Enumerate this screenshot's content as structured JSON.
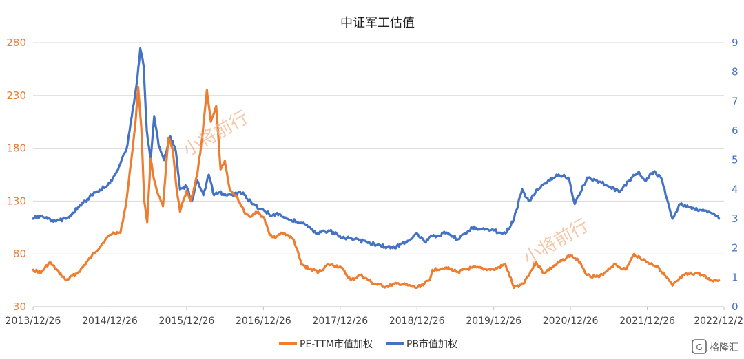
{
  "chart_data": {
    "type": "line",
    "title": "中证军工估值",
    "x_ticks": [
      "2013/12/26",
      "2014/12/26",
      "2015/12/26",
      "2016/12/26",
      "2017/12/26",
      "2018/12/26",
      "2019/12/26",
      "2020/12/26",
      "2021/12/26",
      "2022/12/2"
    ],
    "y_left": {
      "min": 30,
      "max": 280,
      "ticks": [
        "280",
        "230",
        "180",
        "130",
        "80",
        "30"
      ],
      "color": "#ED7D31"
    },
    "y_right": {
      "min": 0,
      "max": 9,
      "ticks": [
        "9",
        "8",
        "7",
        "6",
        "5",
        "4",
        "3",
        "2",
        "1",
        "0"
      ],
      "color": "#4472C4"
    },
    "grid": true,
    "legend_position": "bottom",
    "series": [
      {
        "name": "PE-TTM市值加权",
        "axis": "left",
        "color": "#ED7D31",
        "x": [
          "2013-12-26",
          "2014-02-01",
          "2014-03-15",
          "2014-06-01",
          "2014-08-01",
          "2014-10-01",
          "2014-12-26",
          "2015-01-15",
          "2015-02-15",
          "2015-03-15",
          "2015-04-05",
          "2015-04-25",
          "2015-05-10",
          "2015-05-25",
          "2015-06-08",
          "2015-06-22",
          "2015-07-08",
          "2015-07-25",
          "2015-08-15",
          "2015-09-05",
          "2015-10-01",
          "2015-10-20",
          "2015-11-10",
          "2015-11-25",
          "2015-12-26",
          "2016-01-15",
          "2016-02-15",
          "2016-03-10",
          "2016-04-01",
          "2016-04-20",
          "2016-05-15",
          "2016-06-05",
          "2016-06-25",
          "2016-07-20",
          "2016-08-20",
          "2016-09-25",
          "2016-10-25",
          "2016-11-20",
          "2016-12-26",
          "2017-01-25",
          "2017-02-25",
          "2017-03-25",
          "2017-04-20",
          "2017-05-20",
          "2017-06-25",
          "2017-08-01",
          "2017-09-15",
          "2017-11-01",
          "2017-12-26",
          "2018-02-15",
          "2018-04-01",
          "2018-06-01",
          "2018-08-01",
          "2018-10-01",
          "2018-12-26",
          "2019-02-25",
          "2019-03-10",
          "2019-05-10",
          "2019-07-10",
          "2019-09-15",
          "2019-12-26",
          "2020-02-20",
          "2020-04-01",
          "2020-05-15",
          "2020-07-15",
          "2020-08-20",
          "2020-10-20",
          "2020-12-26",
          "2021-02-10",
          "2021-03-15",
          "2021-05-10",
          "2021-07-20",
          "2021-09-15",
          "2021-10-25",
          "2021-12-26",
          "2022-02-15",
          "2022-04-25",
          "2022-06-20",
          "2022-08-20",
          "2022-10-25",
          "2022-12-02"
        ],
        "values": [
          65,
          62,
          72,
          55,
          63,
          78,
          98,
          100,
          100,
          130,
          165,
          200,
          238,
          200,
          130,
          110,
          170,
          150,
          135,
          125,
          190,
          180,
          140,
          120,
          140,
          130,
          155,
          190,
          235,
          205,
          220,
          160,
          168,
          140,
          135,
          120,
          115,
          120,
          115,
          98,
          96,
          100,
          98,
          93,
          70,
          66,
          63,
          70,
          68,
          55,
          60,
          52,
          49,
          52,
          48,
          55,
          65,
          67,
          63,
          67,
          65,
          70,
          48,
          52,
          72,
          62,
          70,
          79,
          72,
          60,
          58,
          70,
          65,
          80,
          72,
          68,
          50,
          60,
          62,
          55,
          55
        ]
      },
      {
        "name": "PB市值加权",
        "axis": "right",
        "color": "#4472C4",
        "x": [
          "2013-12-26",
          "2014-02-01",
          "2014-04-01",
          "2014-06-01",
          "2014-08-01",
          "2014-10-01",
          "2014-12-26",
          "2015-01-20",
          "2015-02-20",
          "2015-03-20",
          "2015-04-10",
          "2015-05-01",
          "2015-05-20",
          "2015-06-05",
          "2015-06-20",
          "2015-07-08",
          "2015-07-25",
          "2015-08-15",
          "2015-09-10",
          "2015-10-10",
          "2015-11-05",
          "2015-11-25",
          "2015-12-26",
          "2016-01-20",
          "2016-02-15",
          "2016-03-15",
          "2016-04-10",
          "2016-05-05",
          "2016-06-01",
          "2016-07-01",
          "2016-08-01",
          "2016-09-01",
          "2016-10-01",
          "2016-11-01",
          "2016-12-26",
          "2017-02-01",
          "2017-03-01",
          "2017-04-15",
          "2017-06-01",
          "2017-07-15",
          "2017-09-01",
          "2017-11-01",
          "2017-12-26",
          "2018-03-01",
          "2018-05-01",
          "2018-07-01",
          "2018-09-01",
          "2018-11-01",
          "2018-12-26",
          "2019-02-01",
          "2019-03-10",
          "2019-05-10",
          "2019-07-10",
          "2019-09-15",
          "2019-12-26",
          "2020-02-20",
          "2020-04-01",
          "2020-05-10",
          "2020-06-10",
          "2020-07-20",
          "2020-09-01",
          "2020-10-20",
          "2020-12-15",
          "2021-01-15",
          "2021-03-15",
          "2021-05-01",
          "2021-06-25",
          "2021-08-15",
          "2021-10-01",
          "2021-11-15",
          "2021-12-15",
          "2022-01-25",
          "2022-03-01",
          "2022-04-25",
          "2022-06-01",
          "2022-07-15",
          "2022-09-01",
          "2022-10-25",
          "2022-12-02"
        ],
        "values": [
          3.0,
          3.1,
          2.9,
          3.0,
          3.4,
          3.8,
          4.2,
          4.5,
          5.0,
          5.5,
          6.5,
          7.5,
          8.8,
          8.2,
          6.0,
          5.0,
          6.5,
          5.5,
          5.0,
          5.8,
          5.3,
          4.0,
          4.1,
          3.6,
          4.3,
          3.8,
          4.5,
          3.8,
          3.9,
          3.8,
          3.8,
          3.9,
          3.8,
          3.5,
          3.3,
          3.1,
          3.2,
          3.0,
          2.9,
          2.8,
          2.5,
          2.6,
          2.4,
          2.3,
          2.2,
          2.1,
          2.0,
          2.2,
          2.5,
          2.2,
          2.4,
          2.5,
          2.3,
          2.7,
          2.6,
          2.5,
          3.0,
          4.0,
          3.6,
          4.0,
          4.2,
          4.5,
          4.4,
          3.5,
          4.4,
          4.3,
          4.1,
          3.9,
          4.3,
          4.6,
          4.3,
          4.6,
          4.4,
          3.0,
          3.5,
          3.4,
          3.3,
          3.2,
          3.0
        ]
      }
    ]
  },
  "watermarks": [
    "小将前行",
    "小将前行"
  ],
  "logo_text": "格隆汇"
}
